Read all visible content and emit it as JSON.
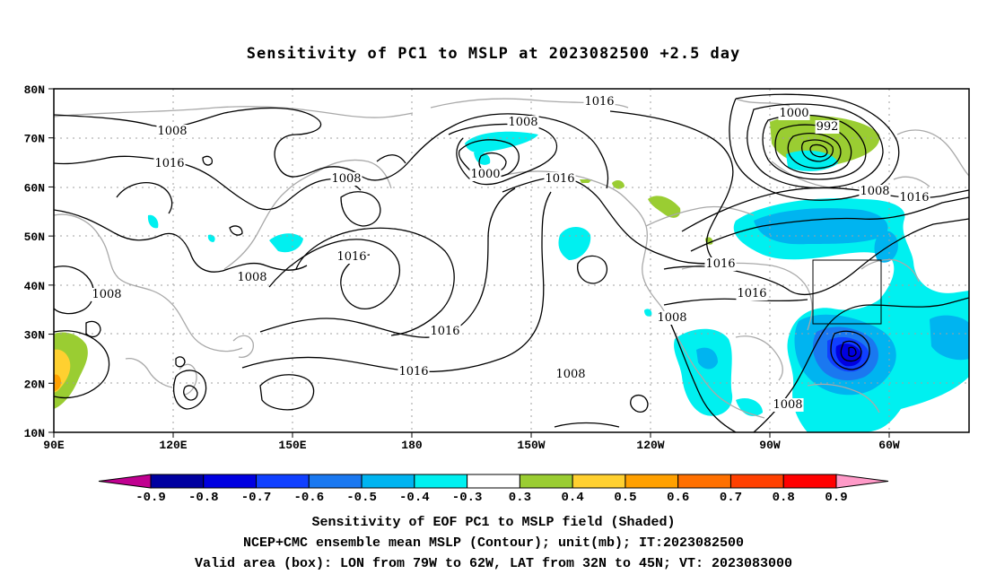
{
  "title": "Sensitivity of PC1 to MSLP at 2023082500 +2.5 day",
  "lat_labels": [
    "80N",
    "70N",
    "60N",
    "50N",
    "40N",
    "30N",
    "20N",
    "10N"
  ],
  "lon_labels": [
    "90E",
    "120E",
    "150E",
    "180",
    "150W",
    "120W",
    "90W",
    "60W"
  ],
  "colorbar": {
    "labels": [
      "-0.9",
      "-0.8",
      "-0.7",
      "-0.6",
      "-0.5",
      "-0.4",
      "-0.3",
      "0.3",
      "0.4",
      "0.5",
      "0.6",
      "0.7",
      "0.8",
      "0.9"
    ],
    "colors": [
      "#c00090",
      "#0000a0",
      "#0000e0",
      "#1040ff",
      "#1a78f0",
      "#00b4f0",
      "#00f0f0",
      "#ffffff",
      "#9acd32",
      "#ffd030",
      "#ffa000",
      "#ff7000",
      "#ff4000",
      "#ff0000",
      "#ff9ac8"
    ]
  },
  "contour_labels": [
    "1016",
    "1008",
    "1016",
    "1000",
    "992",
    "1008",
    "1008",
    "1000",
    "1016",
    "1008",
    "1016",
    "1008",
    "1016",
    "1008",
    "1016",
    "1008",
    "1016",
    "1016",
    "1016",
    "1008",
    "1008"
  ],
  "valid_box": {
    "lon": [
      -79,
      -62
    ],
    "lat": [
      32,
      45
    ]
  },
  "captions": [
    "Sensitivity of EOF PC1 to MSLP field (Shaded)",
    "NCEP+CMC ensemble mean MSLP (Contour); unit(mb); IT:2023082500",
    "Valid area (box): LON from 79W to 62W, LAT from 32N to 45N; VT: 2023083000"
  ]
}
